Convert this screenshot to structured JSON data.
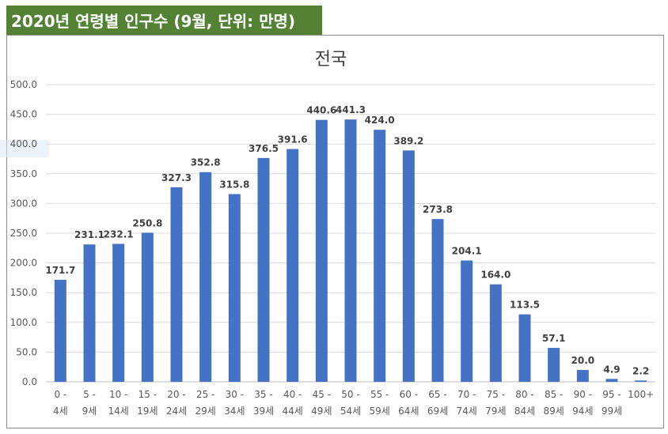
{
  "header": {
    "title": "2020년 연령별 인구수 (9월, 단위: 만명)",
    "background": "#548235",
    "text_color": "#ffffff"
  },
  "chart_data": {
    "type": "bar",
    "title": "전국",
    "categories": [
      [
        "0 -",
        "4세"
      ],
      [
        "5 -",
        "9세"
      ],
      [
        "10 -",
        "14세"
      ],
      [
        "15 -",
        "19세"
      ],
      [
        "20 -",
        "24세"
      ],
      [
        "25 -",
        "29세"
      ],
      [
        "30 -",
        "34세"
      ],
      [
        "35 -",
        "39세"
      ],
      [
        "40 -",
        "44세"
      ],
      [
        "45 -",
        "49세"
      ],
      [
        "50 -",
        "54세"
      ],
      [
        "55 -",
        "59세"
      ],
      [
        "60 -",
        "64세"
      ],
      [
        "65 -",
        "69세"
      ],
      [
        "70 -",
        "74세"
      ],
      [
        "75 -",
        "79세"
      ],
      [
        "80 -",
        "84세"
      ],
      [
        "85 -",
        "89세"
      ],
      [
        "90 -",
        "94세"
      ],
      [
        "95 -",
        "99세"
      ],
      [
        "100+"
      ]
    ],
    "values": [
      171.7,
      231.1,
      232.1,
      250.8,
      327.3,
      352.8,
      315.8,
      376.5,
      391.6,
      440.6,
      441.3,
      424.0,
      389.2,
      273.8,
      204.1,
      164.0,
      113.5,
      57.1,
      20.0,
      4.9,
      2.2
    ],
    "value_labels": [
      "171.7",
      "231.1",
      "232.1",
      "250.8",
      "327.3",
      "352.8",
      "315.8",
      "376.5",
      "391.6",
      "440.6",
      "441.3",
      "424.0",
      "389.2",
      "273.8",
      "204.1",
      "164.0",
      "113.5",
      "57.1",
      "20.0",
      "4.9",
      "2.2"
    ],
    "y_ticks": [
      "0.0",
      "50.0",
      "100.0",
      "150.0",
      "200.0",
      "250.0",
      "300.0",
      "350.0",
      "400.0",
      "450.0",
      "500.0"
    ],
    "ylim": [
      0,
      500
    ],
    "xlabel": "",
    "ylabel": "",
    "grid": true,
    "legend": "none",
    "bar_color": "#4472c4",
    "grid_color": "#d9d9d9"
  }
}
